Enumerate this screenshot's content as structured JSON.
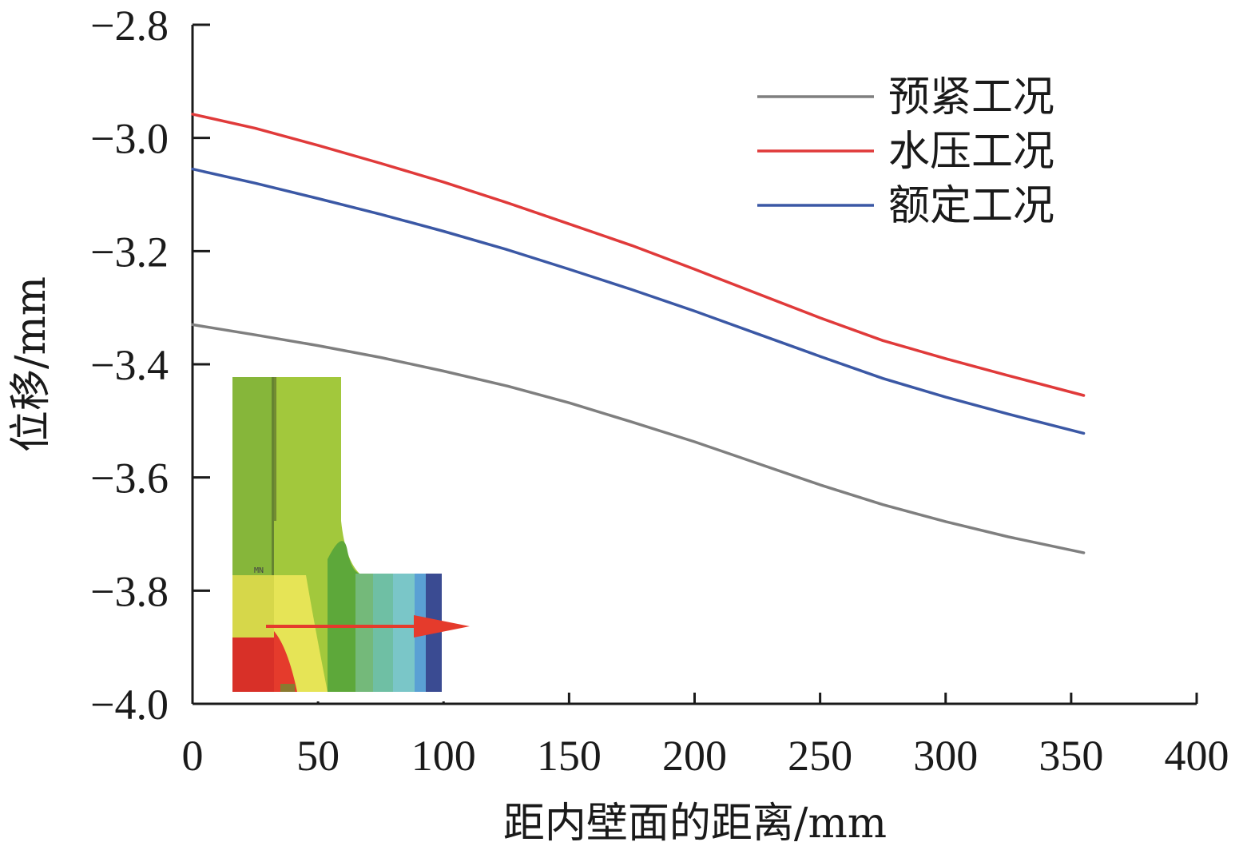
{
  "chart_data": {
    "type": "line",
    "xlabel": "距内壁面的距离/mm",
    "ylabel": "位移/mm",
    "xlim": [
      0,
      400
    ],
    "ylim": [
      -4.0,
      -2.8
    ],
    "xticks": [
      0,
      50,
      100,
      150,
      200,
      250,
      300,
      350,
      400
    ],
    "yticks": [
      -2.8,
      -3.0,
      -3.2,
      -3.4,
      -3.6,
      -3.8,
      -4.0
    ],
    "xtick_labels": [
      "0",
      "50",
      "100",
      "150",
      "200",
      "250",
      "300",
      "350",
      "400"
    ],
    "ytick_labels": [
      "−2.8",
      "−3.0",
      "−3.2",
      "−3.4",
      "−3.6",
      "−3.8",
      "−4.0"
    ],
    "grid": false,
    "legend_position": "top-right",
    "series": [
      {
        "name": "预紧工况",
        "color": "#7f7f7f",
        "x": [
          0,
          25,
          50,
          75,
          100,
          125,
          150,
          175,
          200,
          225,
          250,
          275,
          300,
          325,
          355
        ],
        "y": [
          -3.33,
          -3.348,
          -3.367,
          -3.388,
          -3.412,
          -3.438,
          -3.468,
          -3.502,
          -3.537,
          -3.575,
          -3.613,
          -3.648,
          -3.678,
          -3.705,
          -3.733
        ]
      },
      {
        "name": "水压工况",
        "color": "#e03a3a",
        "x": [
          0,
          25,
          50,
          75,
          100,
          125,
          150,
          175,
          200,
          225,
          250,
          275,
          300,
          325,
          355
        ],
        "y": [
          -2.958,
          -2.983,
          -3.013,
          -3.045,
          -3.078,
          -3.114,
          -3.152,
          -3.19,
          -3.232,
          -3.275,
          -3.318,
          -3.358,
          -3.39,
          -3.42,
          -3.455
        ]
      },
      {
        "name": "额定工况",
        "color": "#3b58a5",
        "x": [
          0,
          25,
          50,
          75,
          100,
          125,
          150,
          175,
          200,
          225,
          250,
          275,
          300,
          325,
          355
        ],
        "y": [
          -3.055,
          -3.08,
          -3.107,
          -3.135,
          -3.165,
          -3.197,
          -3.232,
          -3.268,
          -3.306,
          -3.346,
          -3.386,
          -3.425,
          -3.458,
          -3.488,
          -3.522
        ]
      }
    ],
    "annotations": [
      {
        "type": "inset-image",
        "label": "MN",
        "description_color_arrow": "#e53b2c"
      }
    ]
  }
}
